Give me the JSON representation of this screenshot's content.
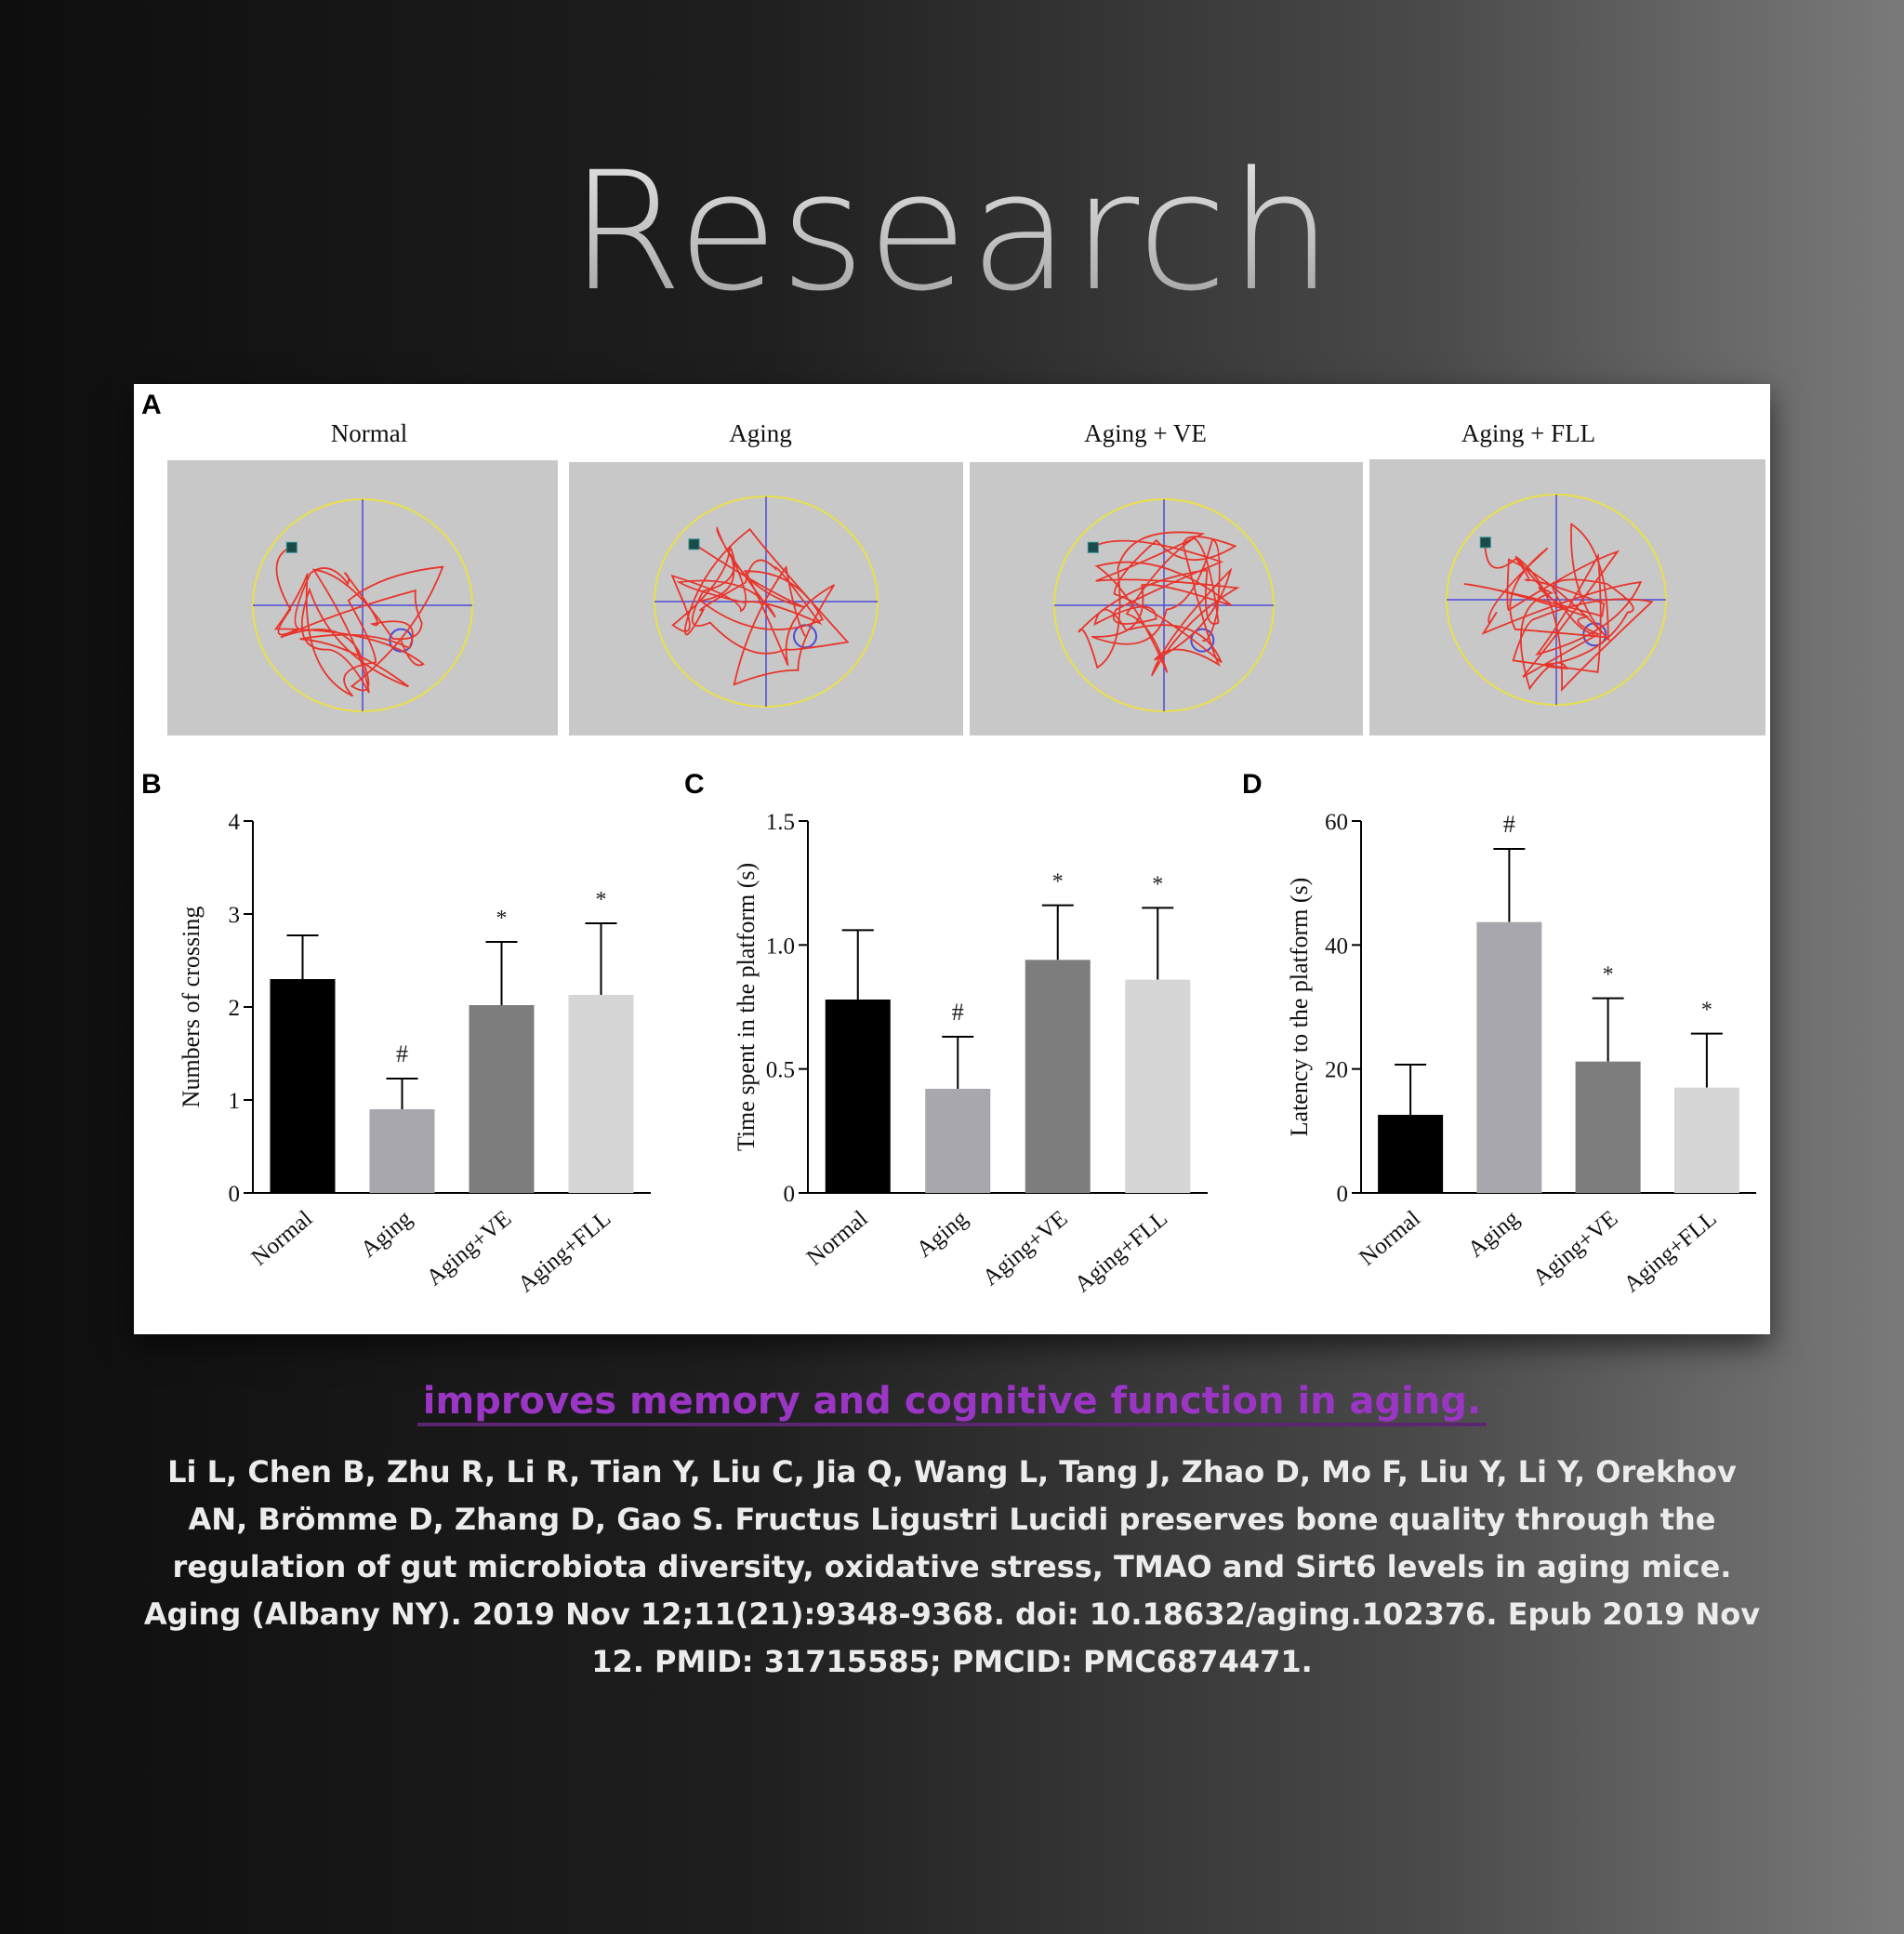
{
  "title": "Research",
  "headline": " improves memory and cognitive function in aging.",
  "citation": "Li L, Chen B, Zhu R, Li R, Tian Y, Liu C, Jia Q, Wang L, Tang J, Zhao D, Mo F, Liu Y, Li Y, Orekhov AN, Brömme D, Zhang D, Gao S. Fructus Ligustri Lucidi preserves bone quality through the regulation of gut microbiota diversity, oxidative stress, TMAO and Sirt6 levels in aging mice. Aging (Albany NY). 2019 Nov 12;11(21):9348-9368. doi: 10.18632/aging.102376. Epub 2019 Nov 12. PMID: 31715585; PMCID: PMC6874471.",
  "colors": {
    "track": "#e8352c",
    "cross": "#4b4bd6",
    "pool": "#e8e04a",
    "tile": "#c8c8c8",
    "bars": [
      "#000000",
      "#a7a7ad",
      "#7d7d7d",
      "#d6d6d6"
    ]
  },
  "panel_a": {
    "letter": "A",
    "titles": [
      "Normal",
      "Aging",
      "Aging + VE",
      "Aging + FLL"
    ]
  },
  "chart_data": [
    {
      "type": "bar",
      "panel": "B",
      "categories": [
        "Normal",
        "Aging",
        "Aging+VE",
        "Aging+FLL"
      ],
      "values": [
        2.3,
        0.9,
        2.02,
        2.13
      ],
      "errors": [
        0.47,
        0.33,
        0.68,
        0.77
      ],
      "annotations": [
        "",
        "#",
        "*",
        "*"
      ],
      "ylabel": "Numbers of crossing",
      "ylim": [
        0,
        4
      ],
      "yticks": [
        "0",
        "1",
        "2",
        "3",
        "4"
      ]
    },
    {
      "type": "bar",
      "panel": "C",
      "categories": [
        "Normal",
        "Aging",
        "Aging+VE",
        "Aging+FLL"
      ],
      "values": [
        0.78,
        0.42,
        0.94,
        0.86
      ],
      "errors": [
        0.28,
        0.21,
        0.22,
        0.29
      ],
      "annotations": [
        "",
        "#",
        "*",
        "*"
      ],
      "ylabel": "Time spent in the platform (s)",
      "ylim": [
        0,
        1.5
      ],
      "yticks": [
        "0",
        "0.5",
        "1.0",
        "1.5"
      ]
    },
    {
      "type": "bar",
      "panel": "D",
      "categories": [
        "Normal",
        "Aging",
        "Aging+VE",
        "Aging+FLL"
      ],
      "values": [
        12.6,
        43.7,
        21.2,
        17.0
      ],
      "errors": [
        8.1,
        11.8,
        10.2,
        8.7
      ],
      "annotations": [
        "",
        "#",
        "*",
        "*"
      ],
      "ylabel": "Latency to the platform (s)",
      "ylim": [
        0,
        60
      ],
      "yticks": [
        "0",
        "20",
        "40",
        "60"
      ]
    }
  ]
}
